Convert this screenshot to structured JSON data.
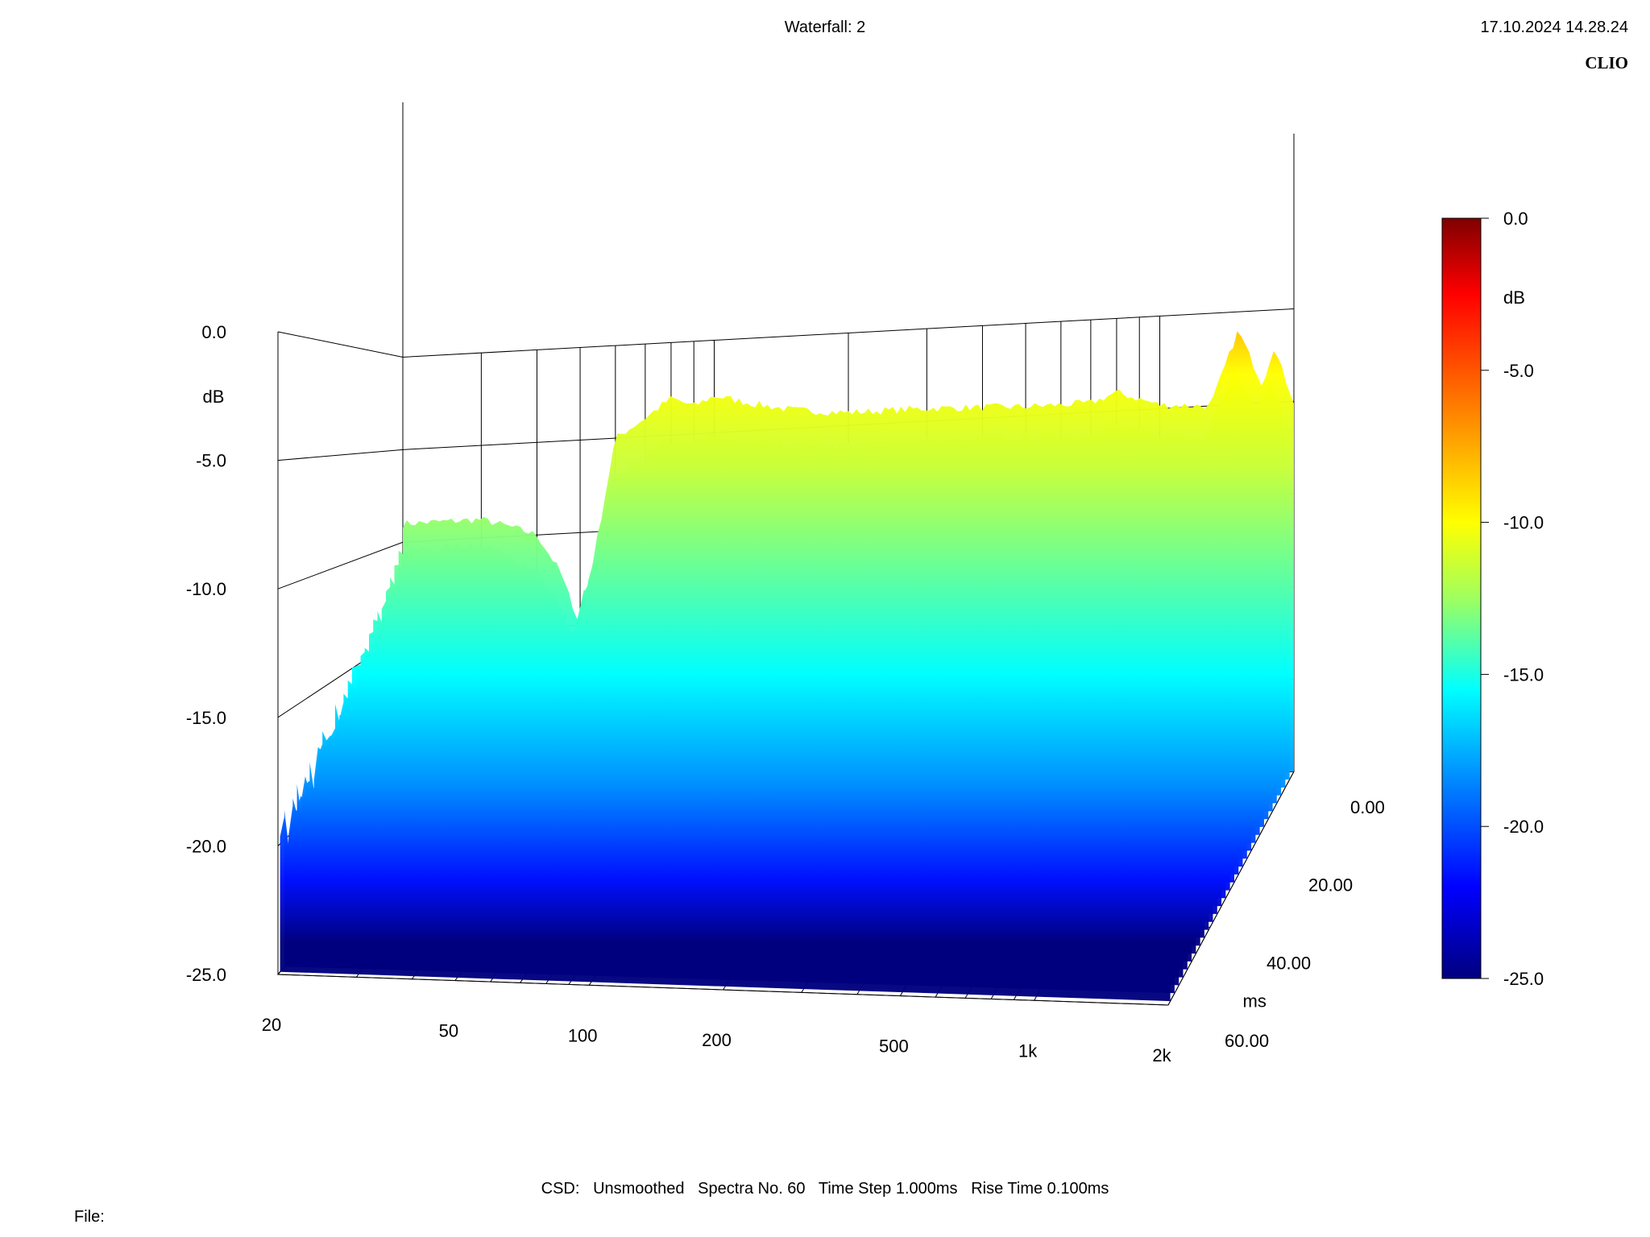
{
  "header": {
    "title": "Waterfall: 2",
    "datetime": "17.10.2024 14.28.24",
    "brand": "CLIO"
  },
  "footer": {
    "settings": "CSD:   Unsmoothed   Spectra No. 60   Time Step 1.000ms   Rise Time 0.100ms",
    "file_label": "File:"
  },
  "chart_data": {
    "type": "waterfall",
    "title": "Waterfall: 2",
    "z_axis": {
      "label": "dB",
      "range": [
        -25,
        0
      ],
      "ticks": [
        "0.0",
        "-5.0",
        "-10.0",
        "-15.0",
        "-20.0",
        "-25.0"
      ]
    },
    "x_axis": {
      "scale": "log",
      "range": [
        20,
        2000
      ],
      "ticks": [
        {
          "value": 20,
          "label": "20"
        },
        {
          "value": 50,
          "label": "50"
        },
        {
          "value": 100,
          "label": "100"
        },
        {
          "value": 200,
          "label": "200"
        },
        {
          "value": 500,
          "label": "500"
        },
        {
          "value": 1000,
          "label": "1k"
        },
        {
          "value": 2000,
          "label": "2k"
        }
      ]
    },
    "y_axis": {
      "label": "ms",
      "range": [
        0,
        60
      ],
      "ticks": [
        "0.00",
        "20.00",
        "40.00",
        "60.00"
      ]
    },
    "colorbar": {
      "label": "dB",
      "range": [
        -25,
        0
      ],
      "ticks": [
        "0.0",
        "-5.0",
        "-10.0",
        "-15.0",
        "-20.0",
        "-25.0"
      ],
      "colors": [
        "#00007f",
        "#0000ff",
        "#007fff",
        "#00ffff",
        "#7fff7f",
        "#ffff00",
        "#ff7f00",
        "#ff0000",
        "#7f0000"
      ]
    },
    "spectra_count": 60,
    "time_step_ms": 1.0,
    "rise_time_ms": 0.1,
    "first_spectrum": {
      "freq_hz": [
        20,
        25,
        30,
        35,
        40,
        45,
        50,
        55,
        60,
        70,
        80,
        90,
        100,
        120,
        150,
        200,
        300,
        500,
        700,
        800,
        1000,
        1300,
        1500,
        1700,
        1800,
        2000
      ],
      "db": [
        -9,
        -9,
        -9,
        -9.5,
        -10,
        -12,
        -15,
        -10,
        -5,
        -4,
        -3,
        -3.5,
        -3,
        -3.5,
        -4,
        -4.3,
        -4.3,
        -4.5,
        -4.5,
        -4,
        -4.8,
        -5,
        -1,
        -4,
        -2,
        -5
      ]
    },
    "last_spectrum": {
      "freq_hz": [
        20,
        30,
        40,
        50,
        60,
        80,
        100,
        150,
        200,
        300,
        500,
        1000,
        1500,
        2000
      ],
      "db": [
        -20,
        -18,
        -22,
        -23,
        -22,
        -20,
        -19,
        -17,
        -17,
        -16.5,
        -16,
        -16,
        -15.5,
        -14
      ]
    }
  }
}
